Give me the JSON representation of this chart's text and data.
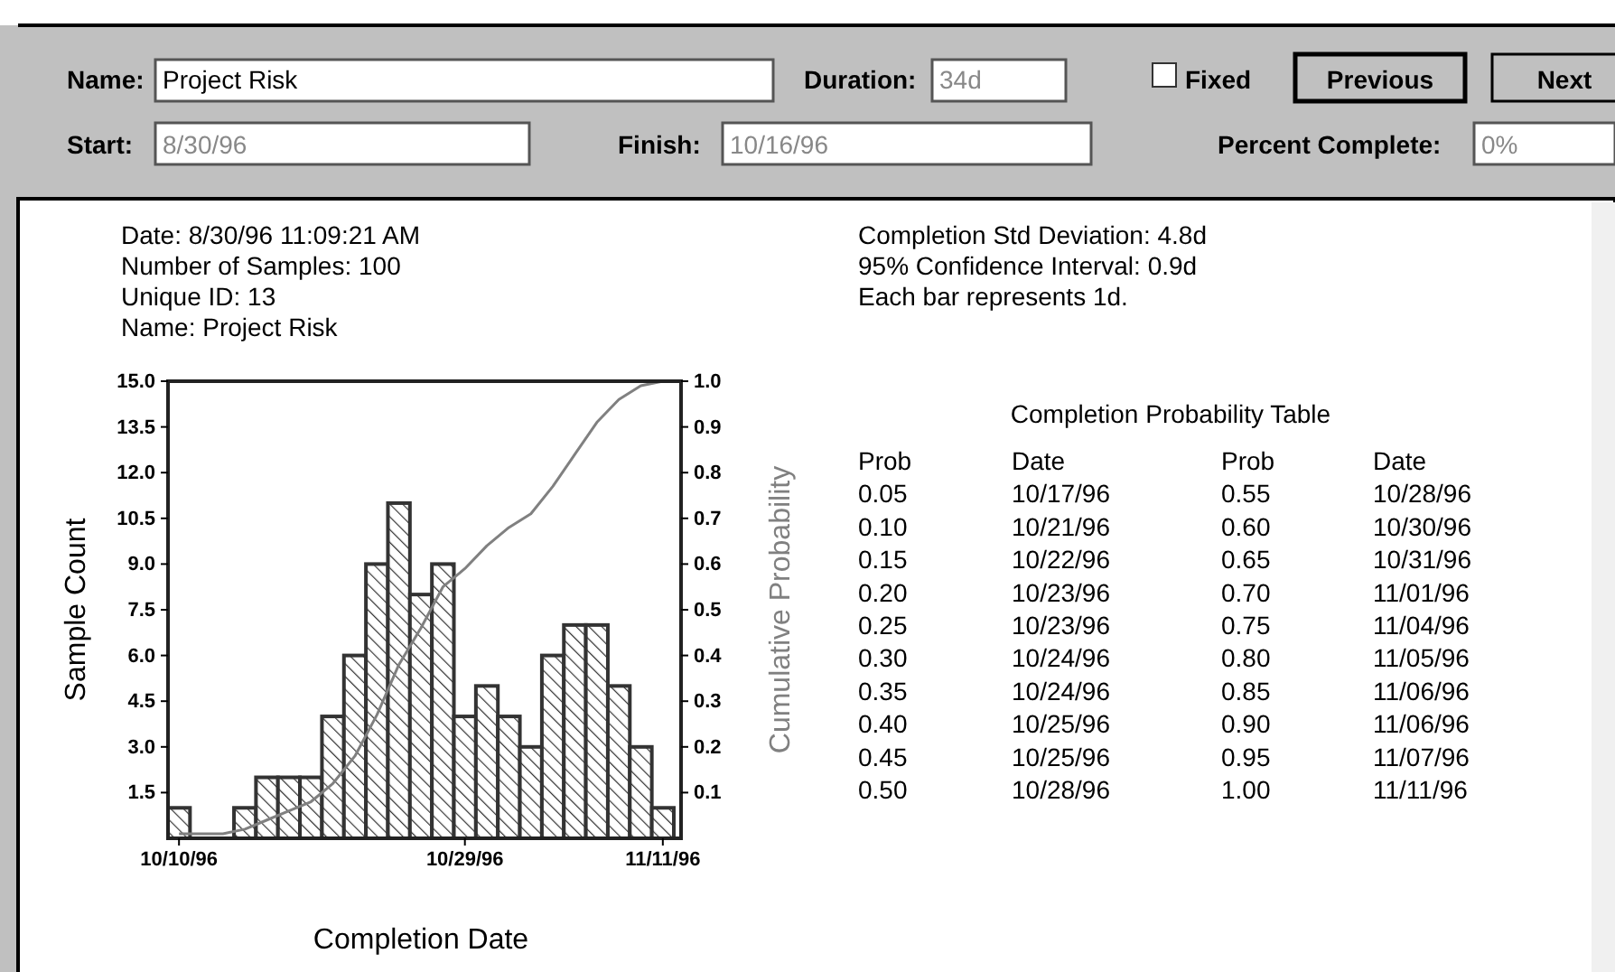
{
  "chart_data": {
    "type": "bar",
    "xlabel": "Completion Date",
    "ylabel": "Sample Count",
    "y2label": "Cumulative Probability",
    "categories": [
      "10/10/96",
      null,
      null,
      null,
      null,
      null,
      null,
      null,
      null,
      null,
      null,
      null,
      null,
      "10/29/96",
      null,
      null,
      null,
      null,
      null,
      null,
      null,
      null,
      "11/11/96"
    ],
    "series": [
      {
        "color": "#333333",
        "values": [
          1,
          0,
          0,
          1,
          2,
          2,
          2,
          4,
          6,
          9,
          11,
          8,
          9,
          4,
          5,
          4,
          3,
          6,
          7,
          7,
          5,
          3,
          1
        ]
      },
      {
        "type": "line",
        "axis": "y2",
        "color": "#808080",
        "values": [
          0.01,
          0.01,
          0.01,
          0.02,
          0.04,
          0.06,
          0.08,
          0.12,
          0.18,
          0.27,
          0.38,
          0.46,
          0.55,
          0.59,
          0.64,
          0.68,
          0.71,
          0.77,
          0.84,
          0.91,
          0.96,
          0.99,
          1.0
        ]
      }
    ],
    "ylim": [
      0,
      15
    ],
    "yticks": [
      {
        "value": 1.5,
        "label": "1.5"
      },
      {
        "value": 3,
        "label": "3.0"
      },
      {
        "value": 4.5,
        "label": "4.5"
      },
      {
        "value": 6,
        "label": "6.0"
      },
      {
        "value": 7.5,
        "label": "7.5"
      },
      {
        "value": 9,
        "label": "9.0"
      },
      {
        "value": 10.5,
        "label": "10.5"
      },
      {
        "value": 12,
        "label": "12.0"
      },
      {
        "value": 13.5,
        "label": "13.5"
      },
      {
        "value": 15,
        "label": "15.0"
      }
    ],
    "y2lim": [
      0,
      1
    ],
    "y2ticks": [
      0.1,
      0.2,
      0.3,
      0.4,
      0.5,
      0.6,
      0.7,
      0.8,
      0.9,
      {
        "value": 1,
        "label": "1.0"
      }
    ],
    "annotations": [
      "Name:",
      "Project Risk",
      "Duration:",
      "34d",
      "Fixed",
      "Previous",
      "Next",
      "Start:",
      "8/30/96",
      "Finish:",
      "10/16/96",
      "Percent Complete:",
      "0%",
      "Date: 8/30/96 11:09:21 AM",
      "Number of Samples: 100",
      "Unique ID: 13",
      "Name: Project Risk",
      "Completion Std Deviation: 4.8d",
      "95% Confidence Interval: 0.9d",
      "Each bar represents 1d.",
      "Completion Probability Table",
      "Prob",
      "Date",
      "Prob",
      "Date",
      "0.05",
      "10/17/96",
      "0.55",
      "10/28/96",
      "0.10",
      "10/21/96",
      "0.60",
      "10/30/96",
      "0.15",
      "10/22/96",
      "0.65",
      "10/31/96",
      "0.20",
      "10/23/96",
      "0.70",
      "11/01/96",
      "0.25",
      "10/23/96",
      "0.75",
      "11/04/96",
      "0.30",
      "10/24/96",
      "0.80",
      "11/05/96",
      "0.35",
      "10/24/96",
      "0.85",
      "11/06/96",
      "0.40",
      "10/25/96",
      "0.90",
      "11/06/96",
      "0.45",
      "10/25/96",
      "0.95",
      "11/07/96",
      "0.50",
      "10/28/96",
      "1.00",
      "11/11/96"
    ]
  }
}
